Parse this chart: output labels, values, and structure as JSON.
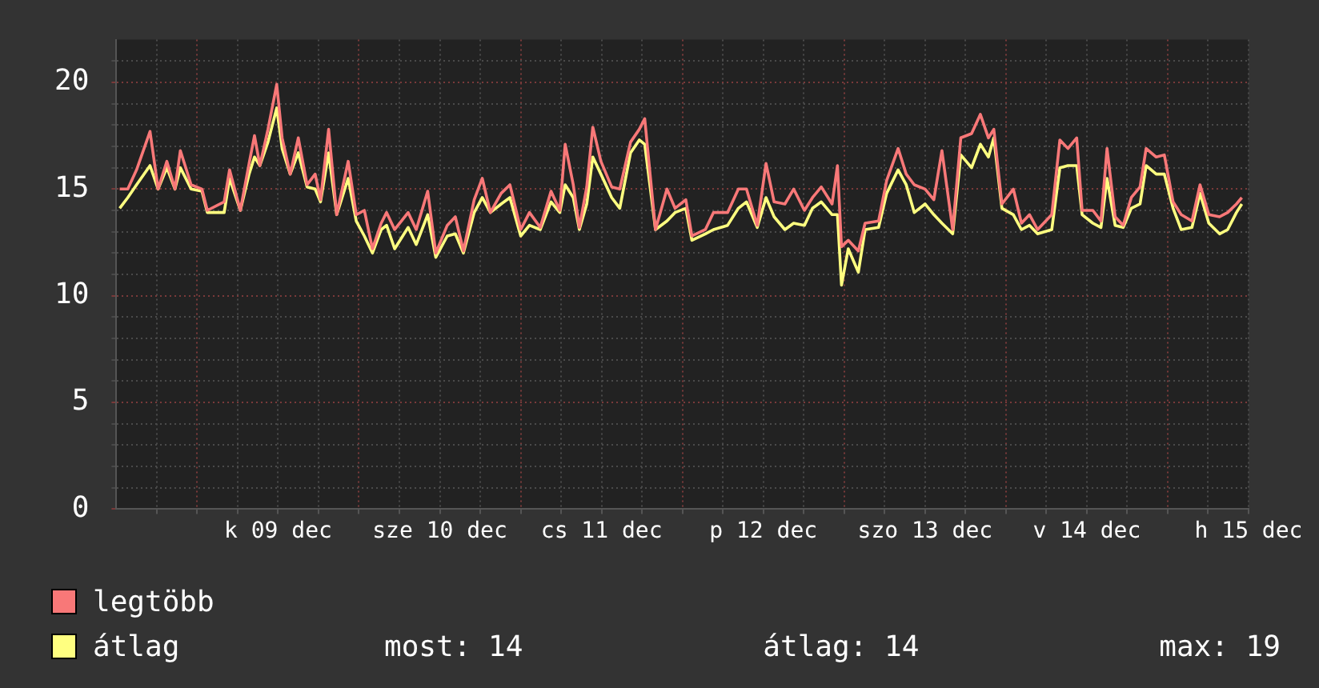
{
  "chart_data": {
    "type": "line",
    "x": [
      "--12-08T12:30",
      "--12-08T13:42",
      "--12-08T15:00",
      "--12-08T17:00",
      "--12-08T18:12",
      "--12-08T19:30",
      "--12-08T20:42",
      "--12-08T21:30",
      "--12-08T23:06",
      "--12-09T00:42",
      "--12-09T01:30",
      "--12-09T04:00",
      "--12-09T04:48",
      "--12-09T06:24",
      "--12-09T07:42",
      "--12-09T08:30",
      "--12-09T09:18",
      "--12-09T10:30",
      "--12-09T11:48",
      "--12-09T12:36",
      "--12-09T13:48",
      "--12-09T15:00",
      "--12-09T16:18",
      "--12-09T17:30",
      "--12-09T18:18",
      "--12-09T19:30",
      "--12-09T20:42",
      "--12-09T22:24",
      "--12-09T23:36",
      "--12-10T00:48",
      "--12-10T02:00",
      "--12-10T03:18",
      "--12-10T04:06",
      "--12-10T05:18",
      "--12-10T07:18",
      "--12-10T08:30",
      "--12-10T10:12",
      "--12-10T11:24",
      "--12-10T13:06",
      "--12-10T14:18",
      "--12-10T15:30",
      "--12-10T17:06",
      "--12-10T18:18",
      "--12-10T19:30",
      "--12-10T21:06",
      "--12-10T22:24",
      "--12-11T00:00",
      "--12-11T01:18",
      "--12-11T02:54",
      "--12-11T04:30",
      "--12-11T05:48",
      "--12-11T06:36",
      "--12-11T07:48",
      "--12-11T08:42",
      "--12-11T09:48",
      "--12-11T10:42",
      "--12-11T11:54",
      "--12-11T13:30",
      "--12-11T14:42",
      "--12-11T16:18",
      "--12-11T17:36",
      "--12-11T18:24",
      "--12-11T20:00",
      "--12-11T21:42",
      "--12-11T22:54",
      "--12-12T00:30",
      "--12-12T01:24",
      "--12-12T03:24",
      "--12-12T04:36",
      "--12-12T06:42",
      "--12-12T08:18",
      "--12-12T09:30",
      "--12-12T11:06",
      "--12-12T12:24",
      "--12-12T13:36",
      "--12-12T15:12",
      "--12-12T16:30",
      "--12-12T18:06",
      "--12-12T19:18",
      "--12-12T20:36",
      "--12-12T22:12",
      "--12-12T23:00",
      "--12-12T23:36",
      "--12-13T00:36",
      "--12-13T02:06",
      "--12-13T03:06",
      "--12-13T05:06",
      "--12-13T06:18",
      "--12-13T08:00",
      "--12-13T09:12",
      "--12-13T10:24",
      "--12-13T12:00",
      "--12-13T13:18",
      "--12-13T14:30",
      "--12-13T16:06",
      "--12-13T17:18",
      "--12-13T18:54",
      "--12-13T20:12",
      "--12-13T21:24",
      "--12-13T22:12",
      "--12-13T23:24",
      "--12-14T01:06",
      "--12-14T02:18",
      "--12-14T03:30",
      "--12-14T04:42",
      "--12-14T06:48",
      "--12-14T08:00",
      "--12-14T09:12",
      "--12-14T10:30",
      "--12-14T11:18",
      "--12-14T12:54",
      "--12-14T14:06",
      "--12-14T15:00",
      "--12-14T16:12",
      "--12-14T17:24",
      "--12-14T18:36",
      "--12-14T19:54",
      "--12-14T20:48",
      "--12-14T22:18",
      "--12-14T23:30",
      "--12-15T00:48",
      "--12-15T02:00",
      "--12-15T03:36",
      "--12-15T04:48",
      "--12-15T06:06",
      "--12-15T07:42",
      "--12-15T08:54",
      "--12-15T10:12",
      "--12-15T11:00"
    ],
    "series": [
      {
        "name": "legtöbb",
        "color": "#f87878",
        "values": [
          15.0,
          15.0,
          15.9,
          17.7,
          15.0,
          16.3,
          15.0,
          16.8,
          15.2,
          15.0,
          14.0,
          14.4,
          15.9,
          14.0,
          16.2,
          17.5,
          16.1,
          17.8,
          19.9,
          17.4,
          15.7,
          17.4,
          15.2,
          15.7,
          14.5,
          17.8,
          13.8,
          16.3,
          13.8,
          14.0,
          12.2,
          13.4,
          13.9,
          13.1,
          13.9,
          13.1,
          14.9,
          12.0,
          13.3,
          13.7,
          12.1,
          14.5,
          15.5,
          13.9,
          14.8,
          15.2,
          13.1,
          13.9,
          13.2,
          14.9,
          14.0,
          17.1,
          15.2,
          13.2,
          15.1,
          17.9,
          16.3,
          15.1,
          15.0,
          17.2,
          17.8,
          18.3,
          13.1,
          15.0,
          14.1,
          14.5,
          12.8,
          13.1,
          13.9,
          13.9,
          15.0,
          15.0,
          13.3,
          16.2,
          14.4,
          14.3,
          15.0,
          14.0,
          14.6,
          15.1,
          14.3,
          16.1,
          12.3,
          12.6,
          12.1,
          13.4,
          13.5,
          15.4,
          16.9,
          15.7,
          15.2,
          15.0,
          14.5,
          16.8,
          13.1,
          17.4,
          17.6,
          18.5,
          17.4,
          17.8,
          14.3,
          15.0,
          13.4,
          13.8,
          13.1,
          13.8,
          17.3,
          16.9,
          17.4,
          14.0,
          14.0,
          13.5,
          16.9,
          13.7,
          13.3,
          14.6,
          15.1,
          16.9,
          16.5,
          16.6,
          14.4,
          13.8,
          13.5,
          15.2,
          13.8,
          13.7,
          13.9,
          14.3,
          14.6
        ]
      },
      {
        "name": "átlag",
        "color": "#ffff80",
        "values": [
          14.1,
          14.6,
          15.2,
          16.1,
          15.0,
          16.0,
          15.0,
          16.0,
          15.0,
          14.9,
          13.9,
          13.9,
          15.5,
          14.0,
          15.7,
          16.5,
          16.1,
          17.2,
          18.8,
          16.9,
          15.7,
          16.7,
          15.1,
          15.0,
          14.4,
          16.7,
          13.8,
          15.5,
          13.5,
          12.8,
          12.0,
          13.1,
          13.3,
          12.2,
          13.2,
          12.4,
          13.8,
          11.8,
          12.8,
          12.9,
          12.0,
          13.9,
          14.6,
          13.9,
          14.3,
          14.6,
          12.8,
          13.3,
          13.1,
          14.4,
          13.9,
          15.2,
          14.6,
          13.1,
          14.3,
          16.5,
          15.7,
          14.6,
          14.1,
          16.7,
          17.3,
          17.1,
          13.1,
          13.5,
          13.9,
          14.1,
          12.6,
          12.9,
          13.1,
          13.3,
          14.1,
          14.4,
          13.2,
          14.6,
          13.7,
          13.1,
          13.4,
          13.3,
          14.1,
          14.4,
          13.8,
          13.8,
          10.5,
          12.2,
          11.1,
          13.1,
          13.2,
          14.8,
          15.9,
          15.2,
          13.9,
          14.3,
          13.8,
          13.4,
          12.9,
          16.6,
          16.0,
          17.1,
          16.5,
          17.4,
          14.1,
          13.8,
          13.1,
          13.3,
          12.9,
          13.1,
          16.0,
          16.1,
          16.1,
          13.8,
          13.4,
          13.2,
          15.5,
          13.3,
          13.2,
          14.1,
          14.3,
          16.1,
          15.7,
          15.7,
          14.1,
          13.1,
          13.2,
          14.8,
          13.4,
          12.9,
          13.1,
          13.9,
          14.3
        ]
      }
    ],
    "xlim": [
      "--12-08T12:00",
      "--12-15T12:00"
    ],
    "xticks": [
      {
        "value": "--12-08T18:00",
        "label": null
      },
      {
        "value": "--12-09T00:00",
        "label": null
      },
      {
        "value": "--12-09T06:00",
        "label": null
      },
      {
        "value": "--12-09T12:00",
        "label": "k 09 dec"
      },
      {
        "value": "--12-09T18:00",
        "label": null
      },
      {
        "value": "--12-10T00:00",
        "label": null
      },
      {
        "value": "--12-10T06:00",
        "label": null
      },
      {
        "value": "--12-10T12:00",
        "label": "sze 10 dec"
      },
      {
        "value": "--12-10T18:00",
        "label": null
      },
      {
        "value": "--12-11T00:00",
        "label": null
      },
      {
        "value": "--12-11T06:00",
        "label": null
      },
      {
        "value": "--12-11T12:00",
        "label": "cs 11 dec"
      },
      {
        "value": "--12-11T18:00",
        "label": null
      },
      {
        "value": "--12-12T00:00",
        "label": null
      },
      {
        "value": "--12-12T06:00",
        "label": null
      },
      {
        "value": "--12-12T12:00",
        "label": "p 12 dec"
      },
      {
        "value": "--12-12T18:00",
        "label": null
      },
      {
        "value": "--12-13T00:00",
        "label": null
      },
      {
        "value": "--12-13T06:00",
        "label": null
      },
      {
        "value": "--12-13T12:00",
        "label": "szo 13 dec"
      },
      {
        "value": "--12-13T18:00",
        "label": null
      },
      {
        "value": "--12-14T00:00",
        "label": null
      },
      {
        "value": "--12-14T06:00",
        "label": null
      },
      {
        "value": "--12-14T12:00",
        "label": "v 14 dec"
      },
      {
        "value": "--12-14T18:00",
        "label": null
      },
      {
        "value": "--12-15T00:00",
        "label": null
      },
      {
        "value": "--12-15T06:00",
        "label": null
      },
      {
        "value": "--12-15T12:00",
        "label": "h 15 dec"
      }
    ],
    "ylim": [
      0,
      22
    ],
    "yticks": [
      0,
      {
        "value": 1,
        "label": null
      },
      {
        "value": 2,
        "label": null
      },
      {
        "value": 3,
        "label": null
      },
      {
        "value": 4,
        "label": null
      },
      5,
      {
        "value": 6,
        "label": null
      },
      {
        "value": 7,
        "label": null
      },
      {
        "value": 8,
        "label": null
      },
      {
        "value": 9,
        "label": null
      },
      10,
      {
        "value": 11,
        "label": null
      },
      {
        "value": 12,
        "label": null
      },
      {
        "value": 13,
        "label": null
      },
      {
        "value": 14,
        "label": null
      },
      15,
      {
        "value": 16,
        "label": null
      },
      {
        "value": 17,
        "label": null
      },
      {
        "value": 18,
        "label": null
      },
      {
        "value": 19,
        "label": null
      },
      20,
      {
        "value": 21,
        "label": null
      }
    ],
    "grid": true,
    "legend": "bottom",
    "marker": "none",
    "line_style": "solid",
    "annotations": [
      "most: 14",
      "átlag: 14",
      "max: 19"
    ]
  }
}
